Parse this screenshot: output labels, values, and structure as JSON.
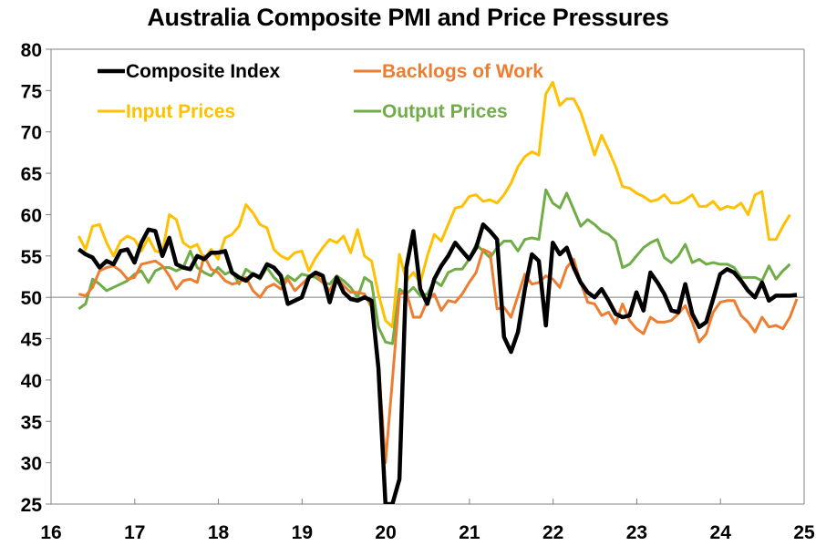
{
  "chart_data": {
    "type": "line",
    "title": "Australia Composite PMI and Price Pressures",
    "xlabel": "",
    "ylabel": "",
    "xlim": [
      16,
      25
    ],
    "ylim": [
      25,
      80
    ],
    "x_ticks": [
      "16",
      "17",
      "18",
      "19",
      "20",
      "21",
      "22",
      "23",
      "24",
      "25"
    ],
    "y_ticks": [
      "25",
      "30",
      "35",
      "40",
      "45",
      "50",
      "55",
      "60",
      "65",
      "70",
      "75",
      "80"
    ],
    "reference_line": 50,
    "grid": false,
    "legend_position": "top-left",
    "x_start": 16.33,
    "x_step_years": 0.08333,
    "series": [
      {
        "name": "Composite Index",
        "color": "#000000",
        "values": [
          55.8,
          55.2,
          54.8,
          53.6,
          54.4,
          54.0,
          55.6,
          55.8,
          54.2,
          56.6,
          58.2,
          58.0,
          55.0,
          57.2,
          54.0,
          53.6,
          53.4,
          55.0,
          54.6,
          55.4,
          55.4,
          55.6,
          53.0,
          52.4,
          52.0,
          52.8,
          52.4,
          54.0,
          53.6,
          52.6,
          49.2,
          49.6,
          50.0,
          52.4,
          53.0,
          52.6,
          49.4,
          52.4,
          50.6,
          49.8,
          49.6,
          50.0,
          49.6,
          41.4,
          25.0,
          25.0,
          28.0,
          53.6,
          58.0,
          51.0,
          49.2,
          52.2,
          53.8,
          55.0,
          56.6,
          55.6,
          54.6,
          56.0,
          58.8,
          58.0,
          57.0,
          45.2,
          43.4,
          45.8,
          51.0,
          55.2,
          54.4,
          46.6,
          56.6,
          55.2,
          56.0,
          53.6,
          51.8,
          50.6,
          50.0,
          51.0,
          49.6,
          48.0,
          47.6,
          47.8,
          50.6,
          48.4,
          53.0,
          51.8,
          50.4,
          48.4,
          48.2,
          51.6,
          48.0,
          46.4,
          47.0,
          49.8,
          52.8,
          53.4,
          53.0,
          52.0,
          50.8,
          50.0,
          51.8,
          49.6,
          50.2,
          50.2,
          50.2,
          50.3
        ]
      },
      {
        "name": "Backlogs of Work",
        "color": "#ED7D31",
        "values": [
          50.4,
          50.2,
          51.2,
          53.2,
          53.6,
          53.8,
          53.2,
          52.2,
          52.4,
          54.0,
          54.2,
          54.4,
          53.8,
          52.6,
          51.0,
          52.0,
          52.2,
          51.8,
          55.0,
          53.4,
          53.0,
          52.0,
          51.6,
          51.8,
          52.4,
          50.8,
          50.0,
          51.2,
          51.6,
          51.0,
          52.2,
          50.8,
          51.6,
          52.4,
          52.8,
          51.8,
          50.8,
          52.4,
          51.4,
          50.6,
          50.6,
          50.4,
          48.8,
          42.0,
          30.0,
          40.0,
          50.4,
          50.6,
          47.6,
          47.6,
          49.6,
          50.4,
          48.4,
          49.6,
          49.4,
          50.4,
          51.8,
          53.0,
          55.8,
          55.4,
          48.6,
          48.8,
          47.6,
          50.2,
          52.8,
          51.6,
          51.8,
          52.6,
          52.2,
          51.2,
          53.6,
          54.6,
          51.8,
          49.4,
          49.2,
          47.8,
          48.2,
          46.8,
          49.2,
          47.2,
          46.2,
          45.6,
          47.6,
          47.0,
          47.0,
          47.2,
          48.0,
          49.0,
          47.0,
          44.6,
          45.6,
          48.2,
          49.4,
          49.6,
          49.6,
          47.8,
          47.0,
          45.8,
          47.6,
          46.4,
          46.6,
          46.2,
          47.6,
          49.8
        ]
      },
      {
        "name": "Input Prices",
        "color": "#FFC000",
        "values": [
          57.4,
          55.8,
          58.6,
          58.8,
          56.6,
          55.0,
          56.8,
          57.4,
          57.0,
          55.6,
          57.2,
          55.6,
          55.4,
          60.0,
          59.4,
          56.6,
          56.0,
          56.4,
          54.6,
          55.8,
          54.6,
          57.2,
          57.6,
          58.6,
          61.2,
          60.2,
          58.8,
          58.4,
          55.8,
          55.0,
          54.6,
          55.4,
          55.6,
          53.2,
          54.8,
          56.0,
          57.0,
          56.6,
          57.4,
          55.4,
          58.2,
          55.0,
          54.4,
          50.4,
          47.2,
          46.4,
          55.2,
          52.0,
          53.0,
          51.8,
          55.0,
          57.6,
          56.8,
          58.8,
          60.8,
          61.0,
          62.2,
          62.4,
          61.6,
          61.8,
          61.4,
          62.4,
          63.8,
          65.8,
          67.0,
          67.6,
          67.2,
          74.6,
          76.0,
          73.2,
          74.0,
          74.0,
          72.4,
          69.8,
          67.2,
          69.6,
          67.8,
          65.8,
          63.4,
          63.2,
          62.6,
          62.2,
          61.6,
          61.8,
          62.4,
          61.4,
          61.4,
          61.8,
          62.4,
          61.0,
          61.0,
          61.6,
          60.6,
          61.0,
          60.8,
          61.4,
          60.0,
          62.4,
          62.8,
          57.0,
          57.0,
          58.6,
          60.0
        ]
      },
      {
        "name": "Output Prices",
        "color": "#70AD47",
        "values": [
          48.6,
          49.2,
          52.2,
          51.6,
          50.8,
          51.2,
          51.6,
          52.0,
          52.8,
          53.2,
          51.8,
          53.2,
          53.6,
          53.6,
          53.2,
          53.6,
          55.6,
          53.6,
          53.0,
          52.6,
          53.6,
          52.8,
          53.2,
          51.6,
          53.4,
          52.8,
          52.2,
          53.6,
          52.4,
          51.6,
          52.6,
          52.0,
          52.8,
          52.6,
          52.4,
          51.8,
          51.6,
          52.6,
          52.0,
          51.2,
          50.0,
          52.4,
          51.8,
          46.4,
          44.6,
          44.4,
          51.0,
          50.4,
          51.2,
          50.2,
          50.4,
          52.0,
          51.4,
          53.0,
          53.4,
          53.4,
          54.6,
          56.4,
          55.6,
          54.8,
          56.0,
          56.8,
          56.8,
          55.6,
          57.0,
          57.2,
          57.0,
          63.0,
          61.4,
          60.8,
          62.6,
          60.6,
          58.6,
          59.4,
          58.8,
          58.0,
          57.6,
          56.8,
          53.6,
          54.0,
          55.0,
          56.0,
          56.6,
          57.0,
          54.8,
          54.2,
          55.0,
          56.4,
          54.2,
          54.6,
          54.0,
          54.2,
          54.0,
          54.0,
          53.6,
          52.4,
          52.4,
          52.4,
          52.0,
          53.8,
          52.2,
          53.2,
          54.0
        ]
      }
    ]
  }
}
